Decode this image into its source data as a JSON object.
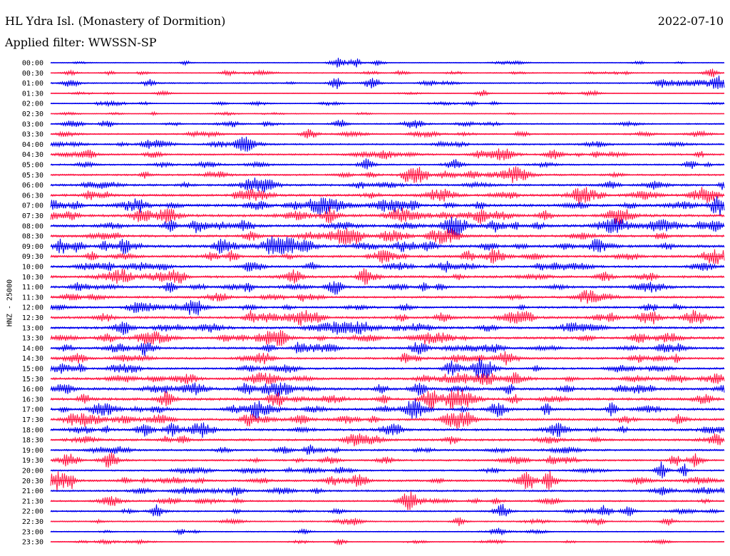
{
  "header": {
    "title": "HL Ydra Isl. (Monastery of Dormition)",
    "date": "2022-07-10",
    "filter_label": "Applied filter: WWSSN-SP"
  },
  "axis": {
    "ylabel": "HNZ - 25000"
  },
  "colors": {
    "even_trace": "#0000ee",
    "odd_trace": "#ff1744",
    "text": "#000000",
    "background": "#ffffff"
  },
  "chart_data": {
    "type": "line",
    "title": "HL Ydra Isl. (Monastery of Dormition)",
    "subtitle": "Applied filter: WWSSN-SP",
    "xlabel": "",
    "ylabel": "HNZ - 25000",
    "grid": false,
    "legend": "none",
    "row_labels": [
      "00:00",
      "00:30",
      "01:00",
      "01:30",
      "02:00",
      "02:30",
      "03:00",
      "03:30",
      "04:00",
      "04:30",
      "05:00",
      "05:30",
      "06:00",
      "06:30",
      "07:00",
      "07:30",
      "08:00",
      "08:30",
      "09:00",
      "09:30",
      "10:00",
      "10:30",
      "11:00",
      "11:30",
      "12:00",
      "12:30",
      "13:00",
      "13:30",
      "14:00",
      "14:30",
      "15:00",
      "15:30",
      "16:00",
      "16:30",
      "17:00",
      "17:30",
      "18:00",
      "18:30",
      "19:00",
      "19:30",
      "20:00",
      "20:30",
      "21:00",
      "21:30",
      "22:00",
      "22:30",
      "23:00",
      "23:30"
    ],
    "row_amplitude": [
      1.5,
      2,
      2.5,
      1.5,
      1.8,
      1.5,
      2.5,
      2.5,
      3,
      3.2,
      3,
      3.5,
      4,
      4.5,
      5,
      5,
      5,
      4.5,
      5,
      4.5,
      4,
      4.5,
      4,
      4,
      3.8,
      4.5,
      4.5,
      4.5,
      4,
      4,
      4,
      4.5,
      5,
      5,
      4.5,
      4.5,
      4.5,
      4,
      3.5,
      3.5,
      3,
      4,
      3.5,
      3,
      2.8,
      2.5,
      2,
      1.8
    ],
    "events": [
      {
        "row": 0,
        "times": [
          6,
          12.8,
          13.6,
          14.6
        ],
        "amps": [
          3,
          7,
          6,
          4
        ]
      },
      {
        "row": 1,
        "times": [
          0.9,
          7.9,
          15.6,
          29.4
        ],
        "amps": [
          3,
          4,
          3,
          7
        ]
      },
      {
        "row": 2,
        "times": [
          0.9,
          12.7,
          14.3,
          16.8,
          29.8
        ],
        "amps": [
          5,
          8,
          9,
          4,
          9
        ]
      },
      {
        "row": 3,
        "times": [
          5,
          19.2,
          24.2
        ],
        "amps": [
          3,
          5,
          3
        ]
      },
      {
        "row": 4,
        "times": [
          18.7,
          19.8
        ],
        "amps": [
          3,
          3
        ]
      },
      {
        "row": 6,
        "times": [
          1,
          2.5,
          12.9,
          16.1
        ],
        "amps": [
          5,
          5,
          6,
          5
        ]
      },
      {
        "row": 7,
        "times": [
          11.5,
          21,
          28.9
        ],
        "amps": [
          5,
          4,
          5
        ]
      },
      {
        "row": 8,
        "times": [
          4.4,
          8.6
        ],
        "amps": [
          6,
          10
        ]
      },
      {
        "row": 9,
        "times": [
          1.7,
          14.9,
          20.1,
          22.4
        ],
        "amps": [
          6,
          6,
          6,
          6
        ]
      },
      {
        "row": 10,
        "times": [
          14.1,
          28.5
        ],
        "amps": [
          6,
          6
        ]
      },
      {
        "row": 11,
        "times": [
          16.1,
          16.6
        ],
        "amps": [
          14,
          9
        ]
      },
      {
        "row": 12,
        "times": [
          30
        ],
        "amps": [
          7
        ]
      },
      {
        "row": 13,
        "times": [
          9
        ],
        "amps": [
          8
        ]
      },
      {
        "row": 14,
        "times": [
          0.2,
          12.1,
          29.7
        ],
        "amps": [
          8,
          8,
          16
        ]
      },
      {
        "row": 15,
        "times": [
          3.9,
          12.4,
          19.2
        ],
        "amps": [
          8,
          8,
          9
        ]
      },
      {
        "row": 16,
        "times": [
          5.3,
          8.7,
          19.8
        ],
        "amps": [
          9,
          9,
          8
        ]
      },
      {
        "row": 18,
        "times": [
          0.5,
          1.2,
          7.6
        ],
        "amps": [
          11,
          8,
          8
        ]
      },
      {
        "row": 19,
        "times": [
          8.1,
          18.6,
          29.4
        ],
        "amps": [
          9,
          8,
          8
        ]
      },
      {
        "row": 20,
        "times": [
          9,
          17.6
        ],
        "amps": [
          8,
          8
        ]
      },
      {
        "row": 21,
        "times": [
          5.7,
          10.9
        ],
        "amps": [
          9,
          8
        ]
      },
      {
        "row": 22,
        "times": [
          5.3,
          8.8
        ],
        "amps": [
          7,
          8
        ]
      },
      {
        "row": 25,
        "times": [
          8.9,
          17.5
        ],
        "amps": [
          9,
          7
        ]
      },
      {
        "row": 26,
        "times": [
          12.7
        ],
        "amps": [
          7
        ]
      },
      {
        "row": 27,
        "times": [
          10.2,
          17.5
        ],
        "amps": [
          8,
          7
        ]
      },
      {
        "row": 28,
        "times": [
          11.1,
          16.4
        ],
        "amps": [
          9,
          9
        ]
      },
      {
        "row": 29,
        "times": [
          9.5
        ],
        "amps": [
          7
        ]
      },
      {
        "row": 30,
        "times": [
          17.9,
          19.2
        ],
        "amps": [
          10,
          7
        ]
      },
      {
        "row": 31,
        "times": [
          18.3,
          19.5
        ],
        "amps": [
          8,
          8
        ]
      },
      {
        "row": 32,
        "times": [
          8.7,
          16.4
        ],
        "amps": [
          8,
          8
        ]
      },
      {
        "row": 33,
        "times": [
          10.1,
          16.9,
          17.9
        ],
        "amps": [
          10,
          10,
          8
        ]
      },
      {
        "row": 34,
        "times": [
          16.1,
          22.1,
          25
        ],
        "amps": [
          9,
          8,
          10
        ]
      },
      {
        "row": 35,
        "times": [
          8.8,
          28
        ],
        "amps": [
          8,
          7
        ]
      },
      {
        "row": 36,
        "times": [
          4.2,
          6.9
        ],
        "amps": [
          9,
          7
        ]
      },
      {
        "row": 39,
        "times": [
          0.8,
          2.6,
          27.8,
          28.7
        ],
        "amps": [
          9,
          8,
          9,
          9
        ]
      },
      {
        "row": 40,
        "times": [
          27.2,
          28.2
        ],
        "amps": [
          13,
          9
        ]
      },
      {
        "row": 41,
        "times": [
          0.3,
          0.9,
          13.7,
          21.3,
          22.3
        ],
        "amps": [
          11,
          10,
          9,
          12,
          9
        ]
      },
      {
        "row": 43,
        "times": [
          16
        ],
        "amps": [
          14
        ]
      },
      {
        "row": 44,
        "times": [
          4.7,
          20.1,
          24.7,
          25.7
        ],
        "amps": [
          8,
          8,
          10,
          7
        ]
      },
      {
        "row": 45,
        "times": [
          18.2,
          27.5
        ],
        "amps": [
          6,
          5
        ]
      },
      {
        "row": 46,
        "times": [
          5.8,
          19.9
        ],
        "amps": [
          4,
          4
        ]
      },
      {
        "row": 47,
        "times": [
          12.9
        ],
        "amps": [
          4
        ]
      }
    ]
  }
}
